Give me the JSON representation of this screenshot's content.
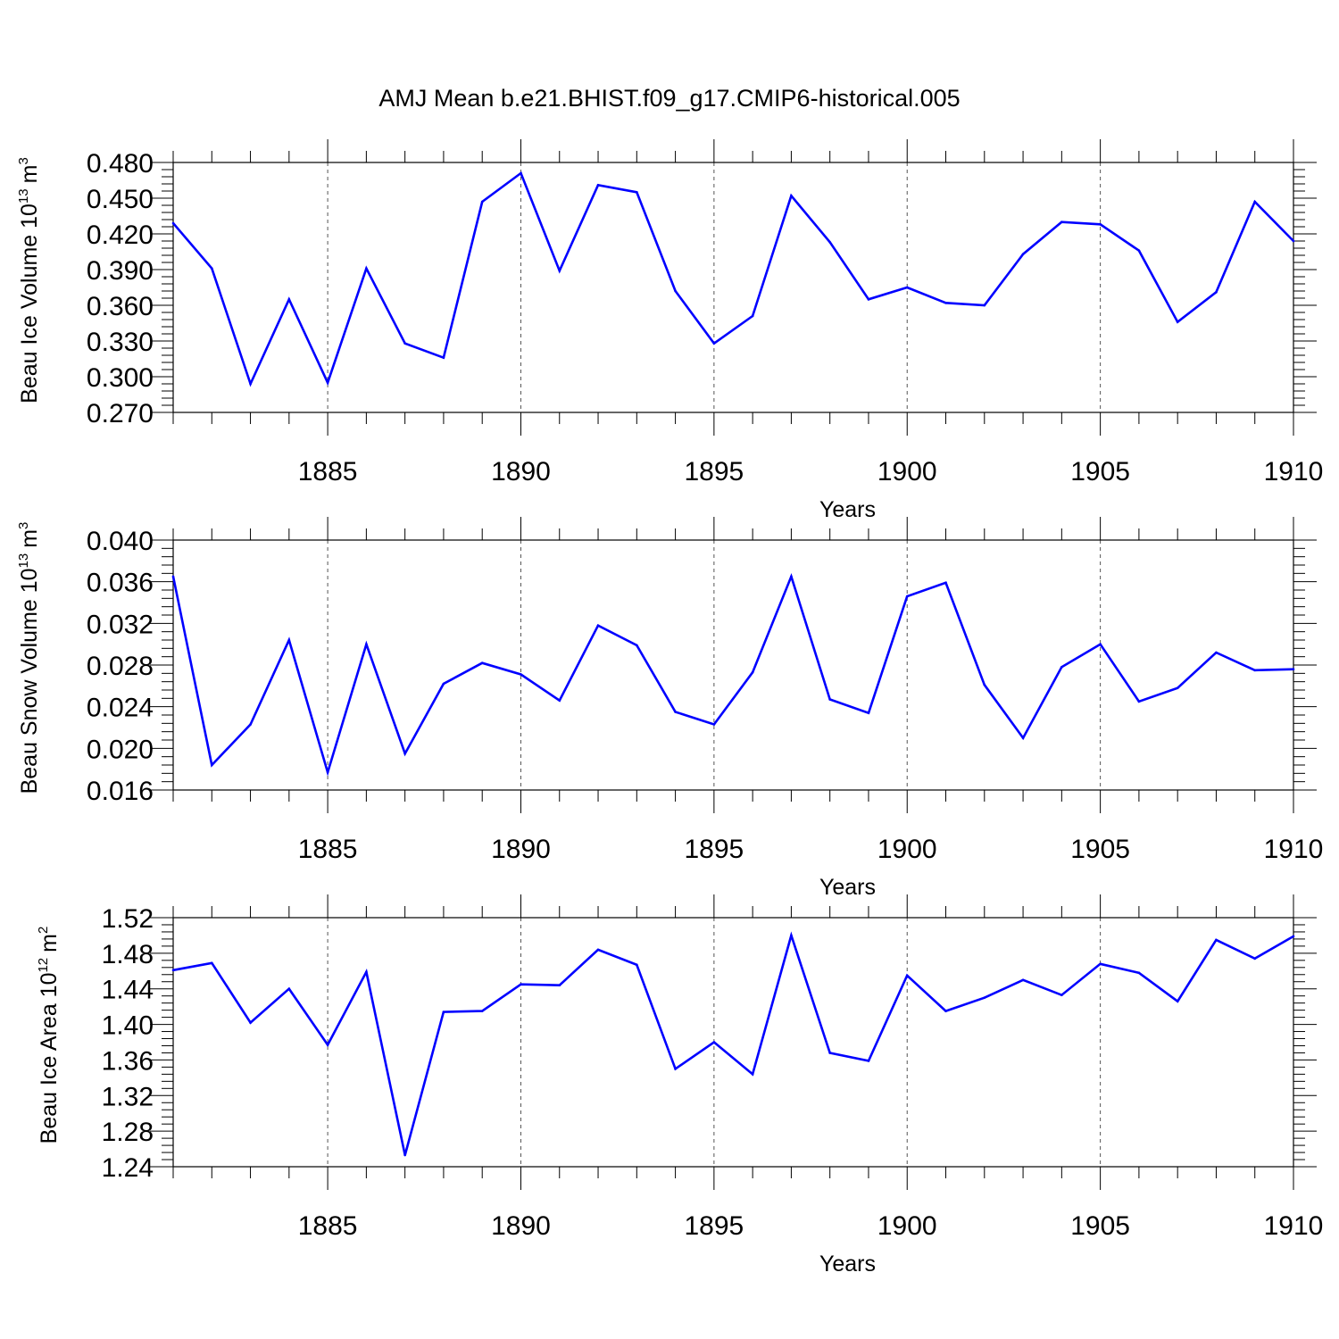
{
  "figure_title": "AMJ Mean b.e21.BHIST.f09_g17.CMIP6-historical.005",
  "colors": {
    "line": "#0000ff",
    "axis": "#000000",
    "grid": "#555555",
    "background": "#ffffff"
  },
  "chart_data": [
    {
      "type": "line",
      "title": "",
      "ylabel": "Beau Ice Volume 10",
      "ylabel_sup": "13",
      "ylabel_unit": "m",
      "ylabel_unit_sup": "3",
      "xlabel": "Years",
      "xlim": [
        1881,
        1910
      ],
      "ylim": [
        0.27,
        0.48
      ],
      "xticks": [
        1885,
        1890,
        1895,
        1900,
        1905,
        1910
      ],
      "yticks": [
        0.27,
        0.3,
        0.33,
        0.36,
        0.39,
        0.42,
        0.45,
        0.48
      ],
      "ytick_labels": [
        "0.270",
        "0.300",
        "0.330",
        "0.360",
        "0.390",
        "0.420",
        "0.450",
        "0.480"
      ],
      "grid": "vertical dashed at major x ticks",
      "x": [
        1881,
        1882,
        1883,
        1884,
        1885,
        1886,
        1887,
        1888,
        1889,
        1890,
        1891,
        1892,
        1893,
        1894,
        1895,
        1896,
        1897,
        1898,
        1899,
        1900,
        1901,
        1902,
        1903,
        1904,
        1905,
        1906,
        1907,
        1908,
        1909,
        1910
      ],
      "series": [
        {
          "values": [
            0.429,
            0.391,
            0.294,
            0.365,
            0.295,
            0.391,
            0.328,
            0.316,
            0.447,
            0.471,
            0.389,
            0.461,
            0.455,
            0.372,
            0.328,
            0.351,
            0.452,
            0.413,
            0.365,
            0.375,
            0.362,
            0.36,
            0.403,
            0.43,
            0.428,
            0.406,
            0.346,
            0.371,
            0.447,
            0.414
          ]
        }
      ]
    },
    {
      "type": "line",
      "title": "",
      "ylabel": "Beau Snow Volume 10",
      "ylabel_sup": "13",
      "ylabel_unit": "m",
      "ylabel_unit_sup": "3",
      "xlabel": "Years",
      "xlim": [
        1881,
        1910
      ],
      "ylim": [
        0.016,
        0.04
      ],
      "xticks": [
        1885,
        1890,
        1895,
        1900,
        1905,
        1910
      ],
      "yticks": [
        0.016,
        0.02,
        0.024,
        0.028,
        0.032,
        0.036,
        0.04
      ],
      "ytick_labels": [
        "0.016",
        "0.020",
        "0.024",
        "0.028",
        "0.032",
        "0.036",
        "0.040"
      ],
      "grid": "vertical dashed at major x ticks",
      "x": [
        1881,
        1882,
        1883,
        1884,
        1885,
        1886,
        1887,
        1888,
        1889,
        1890,
        1891,
        1892,
        1893,
        1894,
        1895,
        1896,
        1897,
        1898,
        1899,
        1900,
        1901,
        1902,
        1903,
        1904,
        1905,
        1906,
        1907,
        1908,
        1909,
        1910
      ],
      "series": [
        {
          "values": [
            0.0365,
            0.0184,
            0.0223,
            0.0304,
            0.0177,
            0.03,
            0.0195,
            0.0262,
            0.0282,
            0.0271,
            0.0246,
            0.0318,
            0.0299,
            0.0235,
            0.0223,
            0.0273,
            0.0365,
            0.0247,
            0.0234,
            0.0346,
            0.0359,
            0.0261,
            0.021,
            0.0278,
            0.03,
            0.0245,
            0.0258,
            0.0292,
            0.0275,
            0.0276
          ]
        }
      ]
    },
    {
      "type": "line",
      "title": "",
      "ylabel": "Beau Ice Area 10",
      "ylabel_sup": "12",
      "ylabel_unit": "m",
      "ylabel_unit_sup": "2",
      "xlabel": "Years",
      "xlim": [
        1881,
        1910
      ],
      "ylim": [
        1.24,
        1.52
      ],
      "xticks": [
        1885,
        1890,
        1895,
        1900,
        1905,
        1910
      ],
      "yticks": [
        1.24,
        1.28,
        1.32,
        1.36,
        1.4,
        1.44,
        1.48,
        1.52
      ],
      "ytick_labels": [
        "1.24",
        "1.28",
        "1.32",
        "1.36",
        "1.40",
        "1.44",
        "1.48",
        "1.52"
      ],
      "grid": "vertical dashed at major x ticks",
      "x": [
        1881,
        1882,
        1883,
        1884,
        1885,
        1886,
        1887,
        1888,
        1889,
        1890,
        1891,
        1892,
        1893,
        1894,
        1895,
        1896,
        1897,
        1898,
        1899,
        1900,
        1901,
        1902,
        1903,
        1904,
        1905,
        1906,
        1907,
        1908,
        1909,
        1910
      ],
      "series": [
        {
          "values": [
            1.461,
            1.469,
            1.402,
            1.44,
            1.377,
            1.459,
            1.253,
            1.414,
            1.415,
            1.445,
            1.444,
            1.484,
            1.467,
            1.35,
            1.38,
            1.344,
            1.5,
            1.368,
            1.359,
            1.455,
            1.415,
            1.43,
            1.45,
            1.433,
            1.468,
            1.458,
            1.426,
            1.495,
            1.474,
            1.499
          ]
        }
      ]
    }
  ]
}
